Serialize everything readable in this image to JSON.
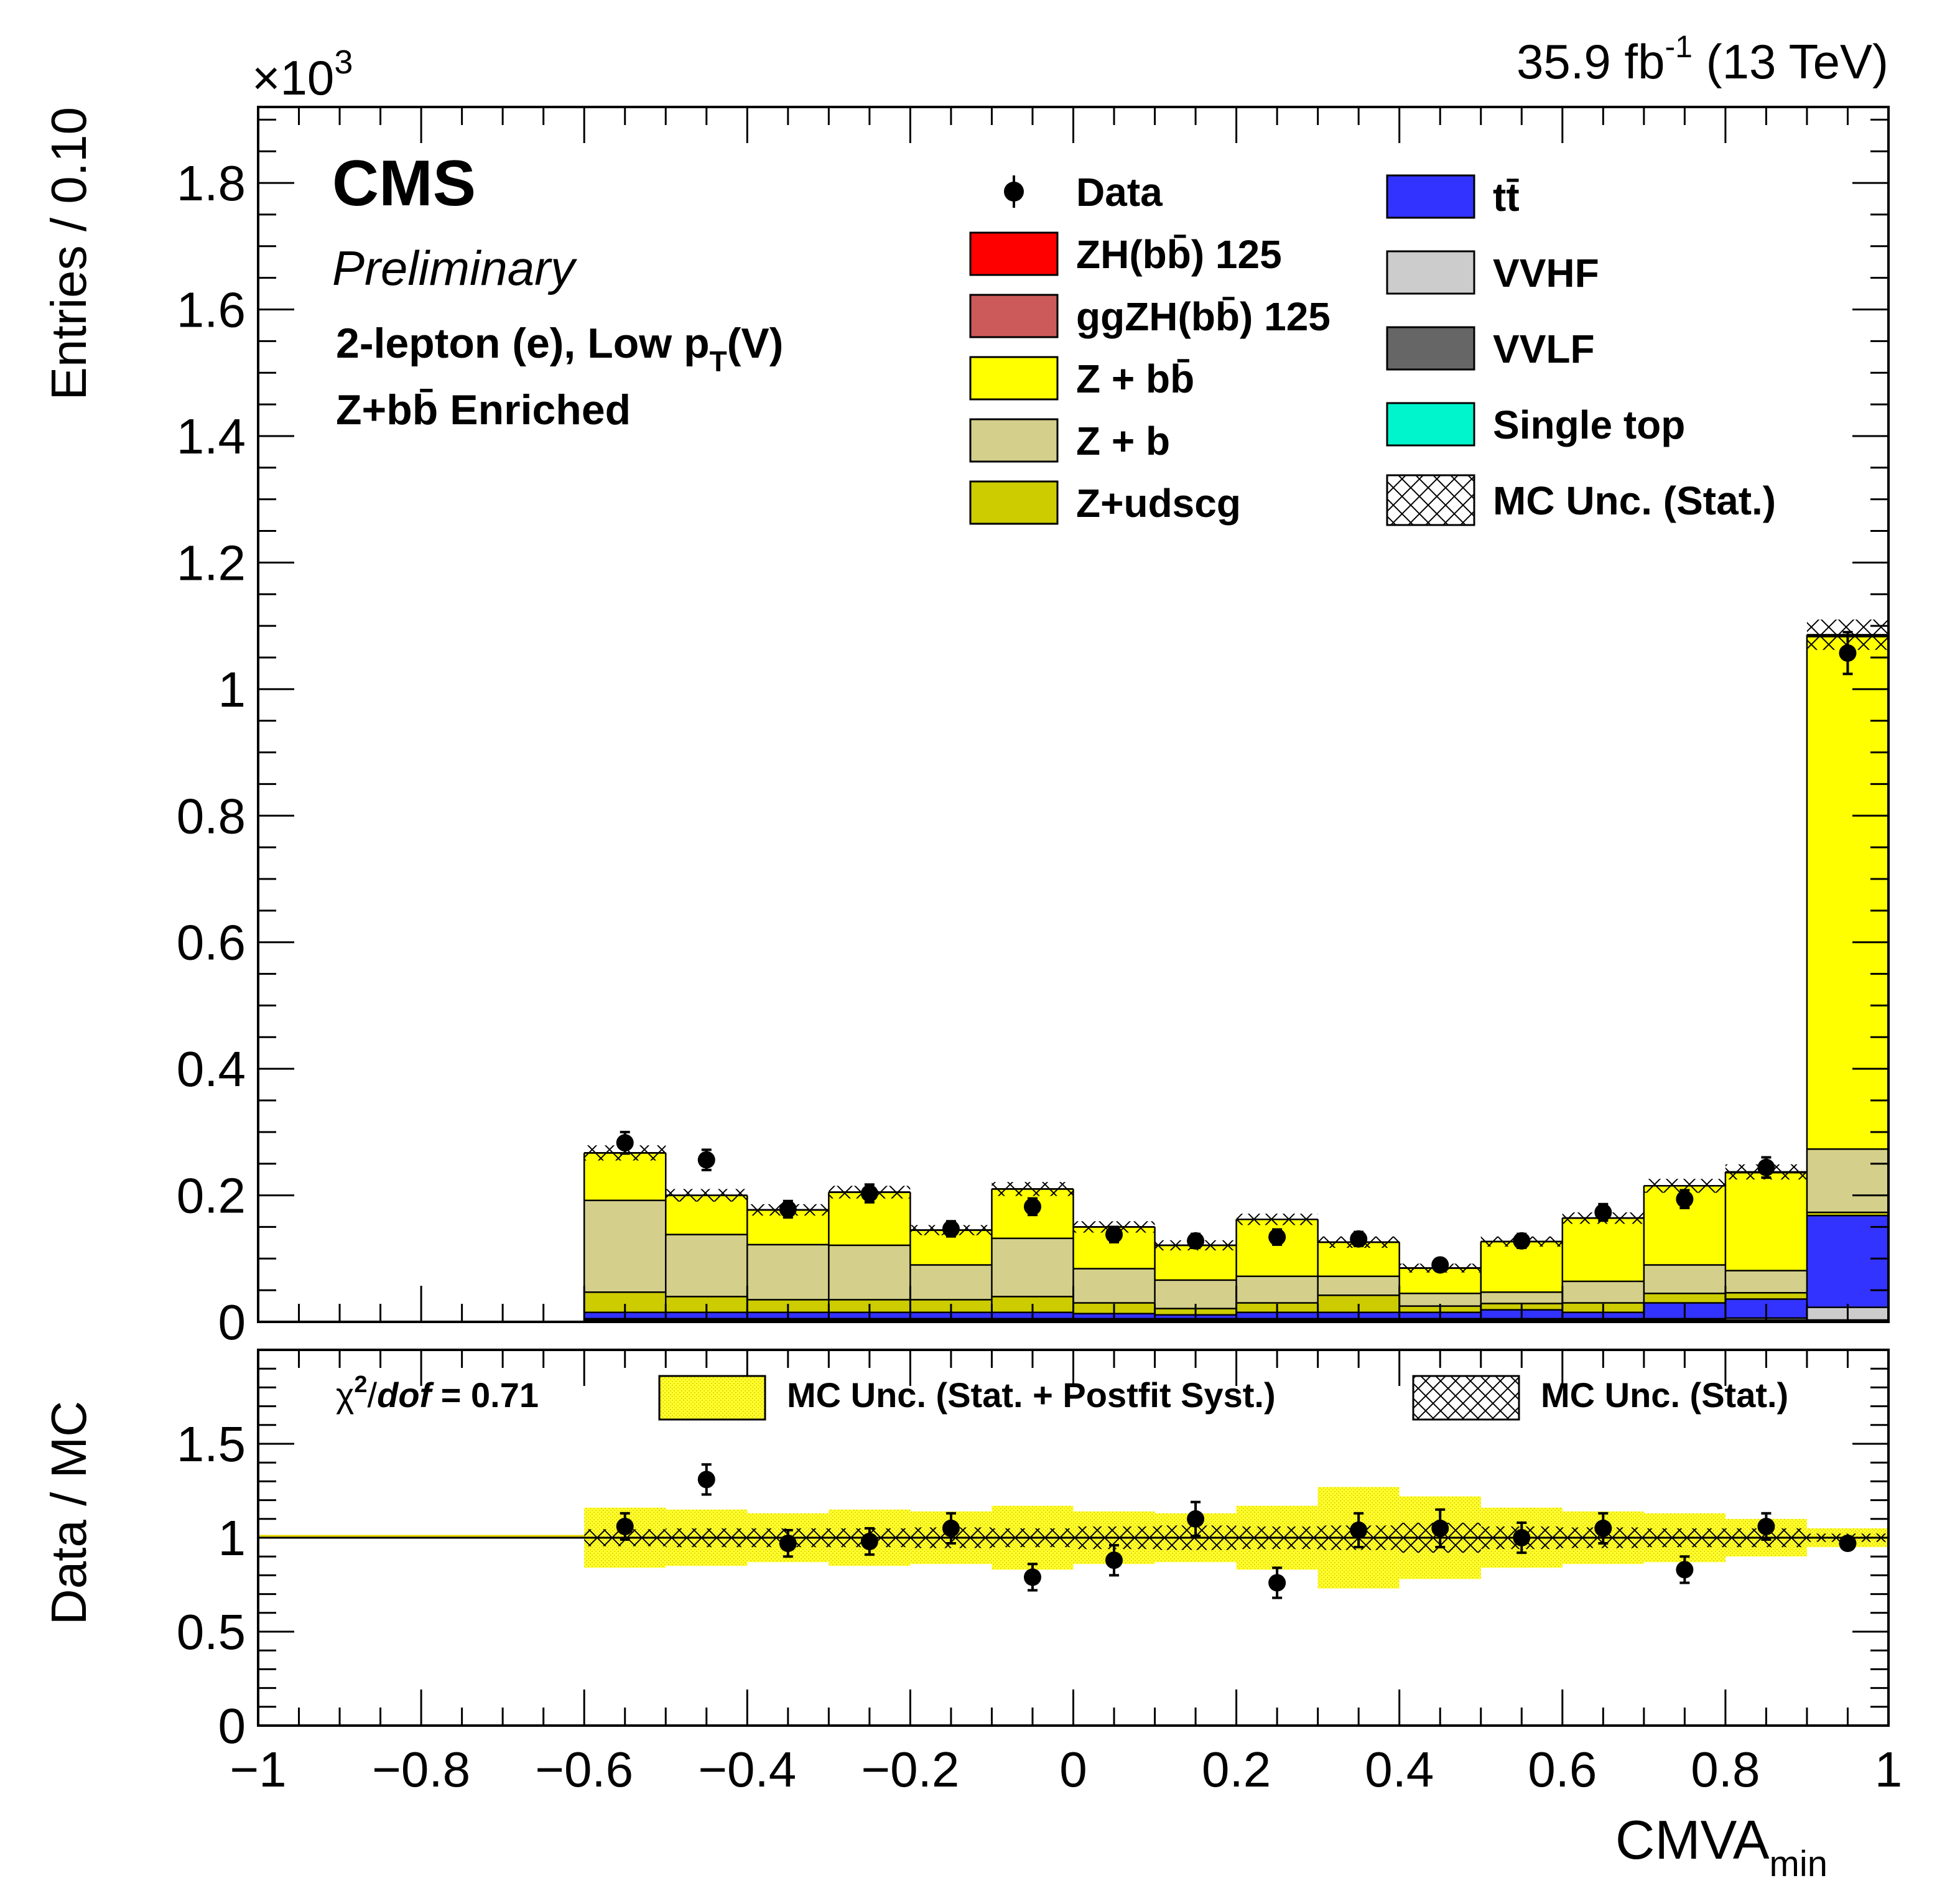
{
  "header": {
    "scale_prefix": "×10",
    "scale_exp": "3",
    "lumi_main": "35.9 fb",
    "lumi_exp": "-1",
    "lumi_energy": " (13 TeV)"
  },
  "labels": {
    "cms": "CMS",
    "preliminary": "Preliminary",
    "channel_main": "2-lepton (e), Low p",
    "channel_sub": "T",
    "channel_end": "(V)",
    "region": "Z+bb̄ Enriched"
  },
  "legend": {
    "entries": [
      {
        "label": "Data",
        "kind": "marker"
      },
      {
        "label": "ZH(bb̄) 125",
        "kind": "fill",
        "color": "#ff0000"
      },
      {
        "label": "ggZH(bb̄) 125",
        "kind": "fill",
        "color": "#cc5a5a"
      },
      {
        "label": "Z + bb̄",
        "kind": "fill",
        "color": "#ffff00"
      },
      {
        "label": "Z + b",
        "kind": "fill",
        "color": "#d4cf8a"
      },
      {
        "label": "Z+udscg",
        "kind": "fill",
        "color": "#cccc00"
      },
      {
        "label": "tt̄",
        "kind": "fill",
        "color": "#3333ff"
      },
      {
        "label": "VVHF",
        "kind": "fill",
        "color": "#cccccc"
      },
      {
        "label": "VVLF",
        "kind": "fill",
        "color": "#666666"
      },
      {
        "label": "Single top",
        "kind": "fill",
        "color": "#00f5cc"
      },
      {
        "label": "MC Unc. (Stat.)",
        "kind": "hatch"
      }
    ]
  },
  "ratio_legend": {
    "chi2_symbol": "χ",
    "chi2_exp": "2",
    "chi2_slash": "/",
    "chi2_dof": "dof",
    "chi2_value": " = 0.71",
    "syst_label": "MC Unc. (Stat. + Postfit Syst.)",
    "stat_label": "MC Unc. (Stat.)"
  },
  "chart_data": [
    {
      "type": "bar",
      "stacked": true,
      "xlabel": "CMVA",
      "xlabel_sub": "min",
      "ylabel": "Entries / 0.10",
      "xlim": [
        -1,
        1
      ],
      "ylim": [
        0,
        1.92
      ],
      "y_scale_note": "×10^3",
      "x_bin_edges": [
        -1.0,
        -0.9,
        -0.8,
        -0.7,
        -0.6,
        -0.5,
        -0.4,
        -0.3,
        -0.2,
        -0.1,
        0.0,
        0.1,
        0.2,
        0.3,
        0.4,
        0.5,
        0.6,
        0.7,
        0.8,
        0.9,
        1.0
      ],
      "x_ticks": [
        "−1",
        "−0.8",
        "−0.6",
        "−0.4",
        "−0.2",
        "0",
        "0.2",
        "0.4",
        "0.6",
        "0.8",
        "1"
      ],
      "y_ticks": [
        "0",
        "0.2",
        "0.4",
        "0.6",
        "0.8",
        "1",
        "1.2",
        "1.4",
        "1.6",
        "1.8"
      ],
      "series": [
        {
          "name": "Single top",
          "color": "#00f5cc",
          "values": [
            0,
            0,
            0,
            0,
            0.002,
            0.002,
            0.002,
            0.002,
            0.002,
            0.002,
            0.002,
            0.002,
            0.002,
            0.002,
            0.002,
            0.002,
            0.002,
            0.002,
            0.002,
            0.002
          ]
        },
        {
          "name": "VVLF",
          "color": "#666666",
          "values": [
            0,
            0,
            0,
            0,
            0.001,
            0.001,
            0.001,
            0.001,
            0.001,
            0.001,
            0.001,
            0.001,
            0.001,
            0.001,
            0.001,
            0.001,
            0.001,
            0.001,
            0.001,
            0.001
          ]
        },
        {
          "name": "VVHF",
          "color": "#cccccc",
          "values": [
            0,
            0,
            0,
            0,
            0.002,
            0.002,
            0.002,
            0.002,
            0.002,
            0.002,
            0.002,
            0.002,
            0.002,
            0.002,
            0.002,
            0.002,
            0.002,
            0.002,
            0.003,
            0.02
          ]
        },
        {
          "name": "tt̄",
          "color": "#3333ff",
          "values": [
            0,
            0,
            0,
            0,
            0.01,
            0.01,
            0.01,
            0.01,
            0.01,
            0.01,
            0.008,
            0.006,
            0.01,
            0.01,
            0.01,
            0.014,
            0.01,
            0.025,
            0.03,
            0.145
          ]
        },
        {
          "name": "Z+udscg",
          "color": "#cccc00",
          "values": [
            0,
            0,
            0,
            0,
            0.032,
            0.025,
            0.02,
            0.02,
            0.02,
            0.025,
            0.017,
            0.01,
            0.015,
            0.027,
            0.01,
            0.01,
            0.015,
            0.015,
            0.01,
            0.005
          ]
        },
        {
          "name": "Z + b",
          "color": "#d4cf8a",
          "values": [
            0,
            0,
            0,
            0,
            0.145,
            0.098,
            0.087,
            0.086,
            0.055,
            0.092,
            0.054,
            0.045,
            0.042,
            0.03,
            0.02,
            0.018,
            0.034,
            0.045,
            0.035,
            0.1
          ]
        },
        {
          "name": "Z + bb̄",
          "color": "#ffff00",
          "values": [
            0,
            0,
            0,
            0,
            0.075,
            0.062,
            0.055,
            0.084,
            0.055,
            0.078,
            0.066,
            0.055,
            0.09,
            0.054,
            0.04,
            0.08,
            0.1,
            0.125,
            0.155,
            0.81
          ]
        },
        {
          "name": "ggZH(bb̄) 125",
          "color": "#cc5a5a",
          "values": [
            0,
            0,
            0,
            0,
            0,
            0,
            0,
            0,
            0,
            0,
            0,
            0,
            0,
            0,
            0,
            0,
            0,
            0,
            0,
            0.001
          ]
        },
        {
          "name": "ZH(bb̄) 125",
          "color": "#ff0000",
          "values": [
            0,
            0,
            0,
            0,
            0,
            0,
            0,
            0,
            0,
            0,
            0,
            0,
            0,
            0,
            0,
            0,
            0,
            0,
            0.001,
            0.002
          ]
        }
      ],
      "data_points": {
        "name": "Data",
        "x": [
          -0.55,
          -0.45,
          -0.35,
          -0.25,
          -0.15,
          -0.05,
          0.05,
          0.15,
          0.25,
          0.35,
          0.45,
          0.55,
          0.65,
          0.75,
          0.85,
          0.95
        ],
        "y": [
          0.283,
          0.256,
          0.178,
          0.203,
          0.147,
          0.182,
          0.138,
          0.128,
          0.134,
          0.131,
          0.09,
          0.128,
          0.173,
          0.194,
          0.244,
          1.057
        ],
        "err": [
          0.017,
          0.016,
          0.013,
          0.014,
          0.012,
          0.013,
          0.012,
          0.011,
          0.012,
          0.011,
          0.009,
          0.011,
          0.013,
          0.014,
          0.016,
          0.033
        ]
      },
      "mc_stat_unc": [
        0,
        0,
        0,
        0,
        0.012,
        0.01,
        0.009,
        0.01,
        0.008,
        0.011,
        0.009,
        0.008,
        0.009,
        0.009,
        0.007,
        0.008,
        0.009,
        0.011,
        0.012,
        0.024
      ]
    },
    {
      "type": "scatter",
      "xlabel": "CMVA",
      "xlabel_sub": "min",
      "ylabel": "Data / MC",
      "xlim": [
        -1,
        1
      ],
      "ylim": [
        0,
        2
      ],
      "y_ticks": [
        "0",
        "0.5",
        "1",
        "1.5"
      ],
      "reference_line": 1,
      "points": {
        "x": [
          -0.55,
          -0.45,
          -0.35,
          -0.25,
          -0.15,
          -0.05,
          0.05,
          0.15,
          0.25,
          0.35,
          0.45,
          0.55,
          0.65,
          0.75,
          0.85,
          0.95
        ],
        "y": [
          1.06,
          1.31,
          0.97,
          0.98,
          1.05,
          0.79,
          0.88,
          1.1,
          0.76,
          1.04,
          1.05,
          1.0,
          1.05,
          0.83,
          1.06,
          0.97
        ],
        "err": [
          0.07,
          0.08,
          0.07,
          0.07,
          0.08,
          0.07,
          0.08,
          0.09,
          0.08,
          0.09,
          0.1,
          0.08,
          0.08,
          0.07,
          0.07,
          0.03
        ]
      },
      "syst_band_halfwidth": [
        0,
        0,
        0,
        0,
        0.16,
        0.15,
        0.13,
        0.15,
        0.14,
        0.17,
        0.14,
        0.13,
        0.17,
        0.27,
        0.22,
        0.16,
        0.14,
        0.13,
        0.1,
        0.05
      ],
      "stat_band_halfwidth": [
        0,
        0,
        0,
        0,
        0.045,
        0.05,
        0.05,
        0.05,
        0.055,
        0.05,
        0.06,
        0.065,
        0.06,
        0.065,
        0.08,
        0.06,
        0.055,
        0.05,
        0.05,
        0.022
      ]
    }
  ]
}
